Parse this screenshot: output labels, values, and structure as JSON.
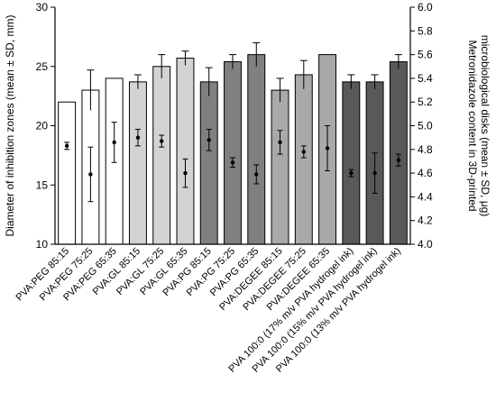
{
  "chart_data": {
    "type": "bar",
    "categories": [
      "PVA:PEG 85:15",
      "PVA:PEG 75:25",
      "PVA:PEG 65:35",
      "PVA:GL 85:15",
      "PVA:GL 75:25",
      "PVA:GL 65:35",
      "PVA:PG 85:15",
      "PVA:PG 75:25",
      "PVA:PG 65:35",
      "PVA:DEGEE 85:15",
      "PVA:DEGEE 75:25",
      "PVA:DEGEE 65:35",
      "PVA 100:0 (17% m/v PVA hydrogel ink)",
      "PVA 100:0 (15% m/v PVA hydrogel ink)",
      "PVA 100:0 (13% m/v PVA hydrogel ink)"
    ],
    "bar_colors": [
      "#ffffff",
      "#ffffff",
      "#ffffff",
      "#d3d3d3",
      "#d3d3d3",
      "#d3d3d3",
      "#808080",
      "#808080",
      "#808080",
      "#a9a9a9",
      "#a9a9a9",
      "#a9a9a9",
      "#595959",
      "#595959",
      "#595959"
    ],
    "series": [
      {
        "values": [
          22.0,
          23.0,
          24.0,
          23.7,
          25.0,
          25.7,
          23.7,
          25.4,
          26.0,
          23.0,
          24.3,
          26.0,
          23.7,
          23.7,
          25.4
        ],
        "errors": [
          0.0,
          1.7,
          0.0,
          0.6,
          1.0,
          0.6,
          1.2,
          0.6,
          1.0,
          1.0,
          1.2,
          0.0,
          0.6,
          0.6,
          0.6
        ],
        "axis": "left",
        "kind": "bar"
      },
      {
        "values": [
          4.83,
          4.59,
          4.86,
          4.9,
          4.87,
          4.6,
          4.88,
          4.69,
          4.59,
          4.86,
          4.78,
          4.81,
          4.6,
          4.6,
          4.71
        ],
        "errors": [
          0.03,
          0.23,
          0.17,
          0.07,
          0.05,
          0.12,
          0.09,
          0.04,
          0.08,
          0.1,
          0.05,
          0.19,
          0.03,
          0.17,
          0.05
        ],
        "axis": "right",
        "kind": "point"
      }
    ],
    "ylabel": "Diameter of inhibition zones (mean ± SD, mm)",
    "ylim": [
      10,
      30
    ],
    "yticks": [
      "10",
      "15",
      "20",
      "25",
      "30"
    ],
    "y2label_lines": [
      "Metronidazole content in 3D-printed",
      "microbiological disks (mean ± SD, μg)"
    ],
    "y2lim": [
      4.0,
      6.0
    ],
    "y2ticks": [
      "4.0",
      "4.2",
      "4.4",
      "4.6",
      "4.8",
      "5.0",
      "5.2",
      "5.4",
      "5.6",
      "5.8",
      "6.0"
    ],
    "grid": false,
    "legend": "none"
  }
}
